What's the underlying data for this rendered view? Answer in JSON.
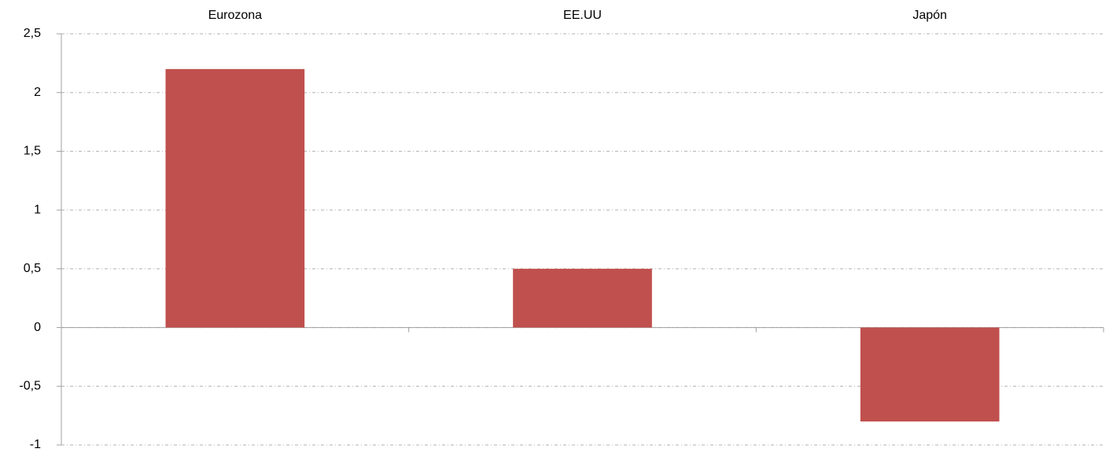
{
  "chart_data": {
    "type": "bar",
    "categories": [
      "Eurozona",
      "EE.UU",
      "Japón"
    ],
    "values": [
      2.2,
      0.5,
      -0.8
    ],
    "color": "#c0504d",
    "ylim": [
      -1,
      2.5
    ],
    "yticks": [
      -1,
      {
        "value": -0.5,
        "label": "-0,5"
      },
      0,
      {
        "value": 0.5,
        "label": "0,5"
      },
      1,
      {
        "value": 1.5,
        "label": "1,5"
      },
      2,
      {
        "value": 2.5,
        "label": "2,5"
      }
    ],
    "grid": true
  }
}
